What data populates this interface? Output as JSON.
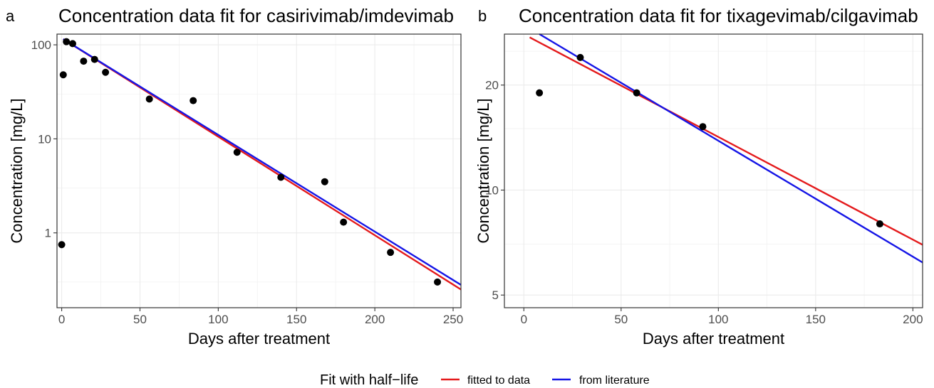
{
  "chart_data": [
    {
      "panel_label": "a",
      "type": "scatter",
      "title": "Concentration data fit for casirivimab/imdevimab",
      "xlabel": "Days after treatment",
      "ylabel": "Concentration [mg/L]",
      "xlim": [
        -3,
        255
      ],
      "ylim": [
        0.16,
        130
      ],
      "y_scale": "log",
      "x_ticks": [
        0,
        50,
        100,
        150,
        200,
        250
      ],
      "y_ticks": [
        1,
        10,
        100
      ],
      "grid": true,
      "points": [
        {
          "x": 0,
          "y": 0.75
        },
        {
          "x": 1,
          "y": 48
        },
        {
          "x": 3,
          "y": 108
        },
        {
          "x": 7,
          "y": 103
        },
        {
          "x": 14,
          "y": 67
        },
        {
          "x": 21,
          "y": 70
        },
        {
          "x": 28,
          "y": 51
        },
        {
          "x": 56,
          "y": 26.5
        },
        {
          "x": 84,
          "y": 25.5
        },
        {
          "x": 112,
          "y": 7.2
        },
        {
          "x": 140,
          "y": 3.9
        },
        {
          "x": 168,
          "y": 3.5
        },
        {
          "x": 180,
          "y": 1.3
        },
        {
          "x": 210,
          "y": 0.62
        },
        {
          "x": 240,
          "y": 0.3
        }
      ],
      "series": [
        {
          "name": "fitted to data",
          "color": "#e41a1c",
          "x": [
            1,
            255
          ],
          "y": [
            115,
            0.25
          ]
        },
        {
          "name": "from literature",
          "color": "#1515e6",
          "x": [
            1,
            255
          ],
          "y": [
            115,
            0.28
          ]
        }
      ]
    },
    {
      "panel_label": "b",
      "type": "scatter",
      "title": "Concentration data fit for tixagevimab/cilgavimab",
      "xlabel": "Days after treatment",
      "ylabel": "Concentration [mg/L]",
      "xlim": [
        -10,
        205
      ],
      "ylim": [
        4.6,
        28
      ],
      "y_scale": "log",
      "x_ticks": [
        0,
        50,
        100,
        150,
        200
      ],
      "y_ticks": [
        5,
        10,
        20
      ],
      "grid": true,
      "points": [
        {
          "x": 8,
          "y": 19
        },
        {
          "x": 29,
          "y": 24
        },
        {
          "x": 58,
          "y": 19
        },
        {
          "x": 92,
          "y": 15.2
        },
        {
          "x": 183,
          "y": 8
        }
      ],
      "series": [
        {
          "name": "fitted to data",
          "color": "#e41a1c",
          "x": [
            3,
            205
          ],
          "y": [
            27.4,
            6.97
          ]
        },
        {
          "name": "from literature",
          "color": "#1515e6",
          "x": [
            8,
            205
          ],
          "y": [
            28.0,
            6.2
          ]
        }
      ]
    }
  ],
  "legend": {
    "title": "Fit with half−life",
    "items": [
      {
        "label": "fitted to data",
        "color": "#e41a1c"
      },
      {
        "label": "from literature",
        "color": "#1515e6"
      }
    ]
  }
}
